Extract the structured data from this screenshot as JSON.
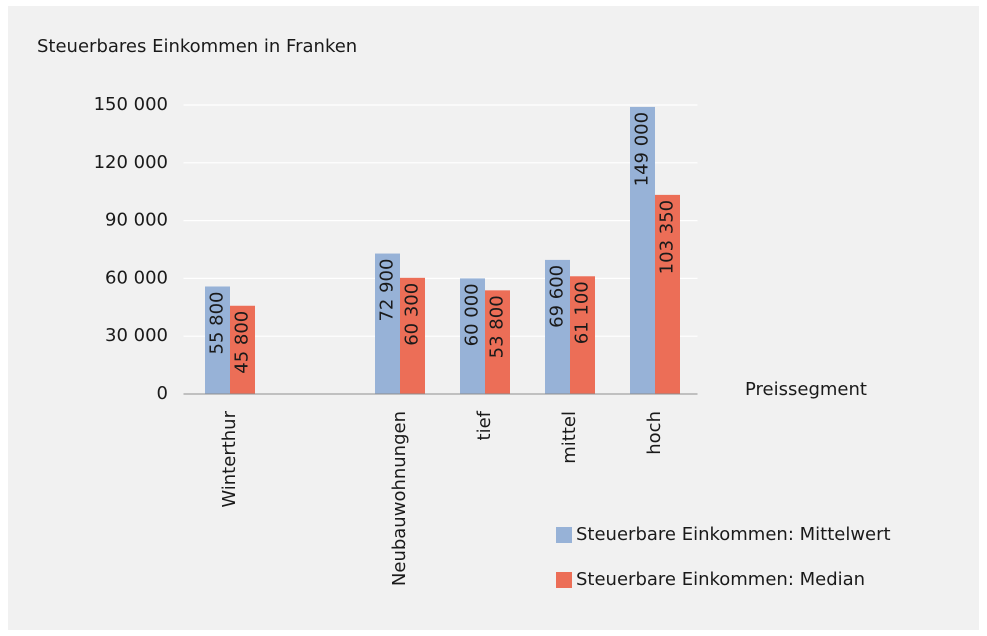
{
  "chart_data": {
    "type": "bar",
    "y_axis_title": "Steuerbares Einkommen in Franken",
    "x_axis_title": "Preissegment",
    "categories": [
      "Winterthur",
      null,
      "Neubauwohnungen",
      "tief",
      "mittel",
      "hoch"
    ],
    "series": [
      {
        "name": "Steuerbare Einkommen: Mittelwert",
        "color": "#97b2d7",
        "values": [
          55800,
          null,
          72900,
          60000,
          69600,
          149000
        ],
        "value_labels": [
          "55 800",
          null,
          "72 900",
          "60 000",
          "69 600",
          "149 000"
        ]
      },
      {
        "name": "Steuerbare Einkommen: Median",
        "color": "#ec6e57",
        "values": [
          45800,
          null,
          60300,
          53800,
          61100,
          103350
        ],
        "value_labels": [
          "45 800",
          null,
          "60 300",
          "53 800",
          "61 100",
          "103 350"
        ]
      }
    ],
    "ylim": [
      0,
      150000
    ],
    "yticks": [
      0,
      {
        "value": 30000,
        "label": "30 000"
      },
      {
        "value": 60000,
        "label": "60 000"
      },
      {
        "value": 90000,
        "label": "90 000"
      },
      {
        "value": 120000,
        "label": "120 000"
      },
      {
        "value": 150000,
        "label": "150 000"
      }
    ],
    "grid": true
  }
}
